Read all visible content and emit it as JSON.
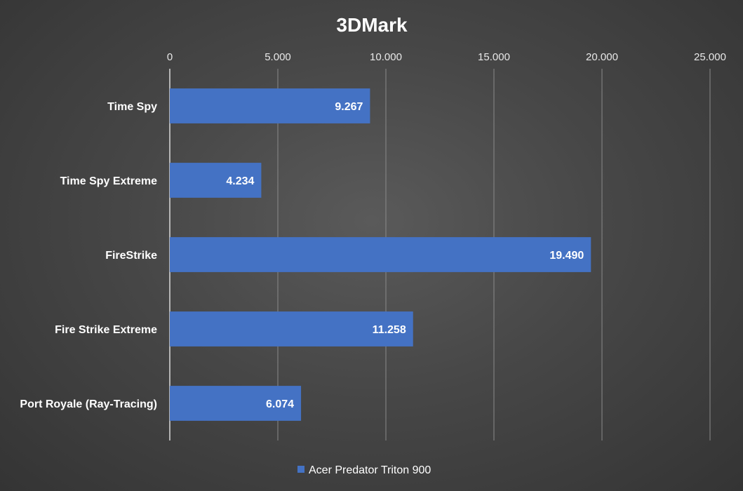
{
  "chart_data": {
    "type": "bar",
    "orientation": "horizontal",
    "title": "3DMark",
    "categories": [
      "Time Spy",
      "Time Spy Extreme",
      "FireStrike",
      "Fire Strike Extreme",
      "Port Royale (Ray-Tracing)"
    ],
    "series": [
      {
        "name": "Acer Predator Triton 900",
        "values": [
          9267,
          4234,
          19490,
          11258,
          6074
        ],
        "labels": [
          "9.267",
          "4.234",
          "19.490",
          "11.258",
          "6.074"
        ],
        "color": "#4472c4"
      }
    ],
    "xlim": [
      0,
      25000
    ],
    "xticks": [
      0,
      5000,
      10000,
      15000,
      20000,
      25000
    ],
    "xtick_labels": [
      "0",
      "5.000",
      "10.000",
      "15.000",
      "20.000",
      "25.000"
    ],
    "axis_position": "top",
    "grid": true,
    "legend": "bottom"
  }
}
